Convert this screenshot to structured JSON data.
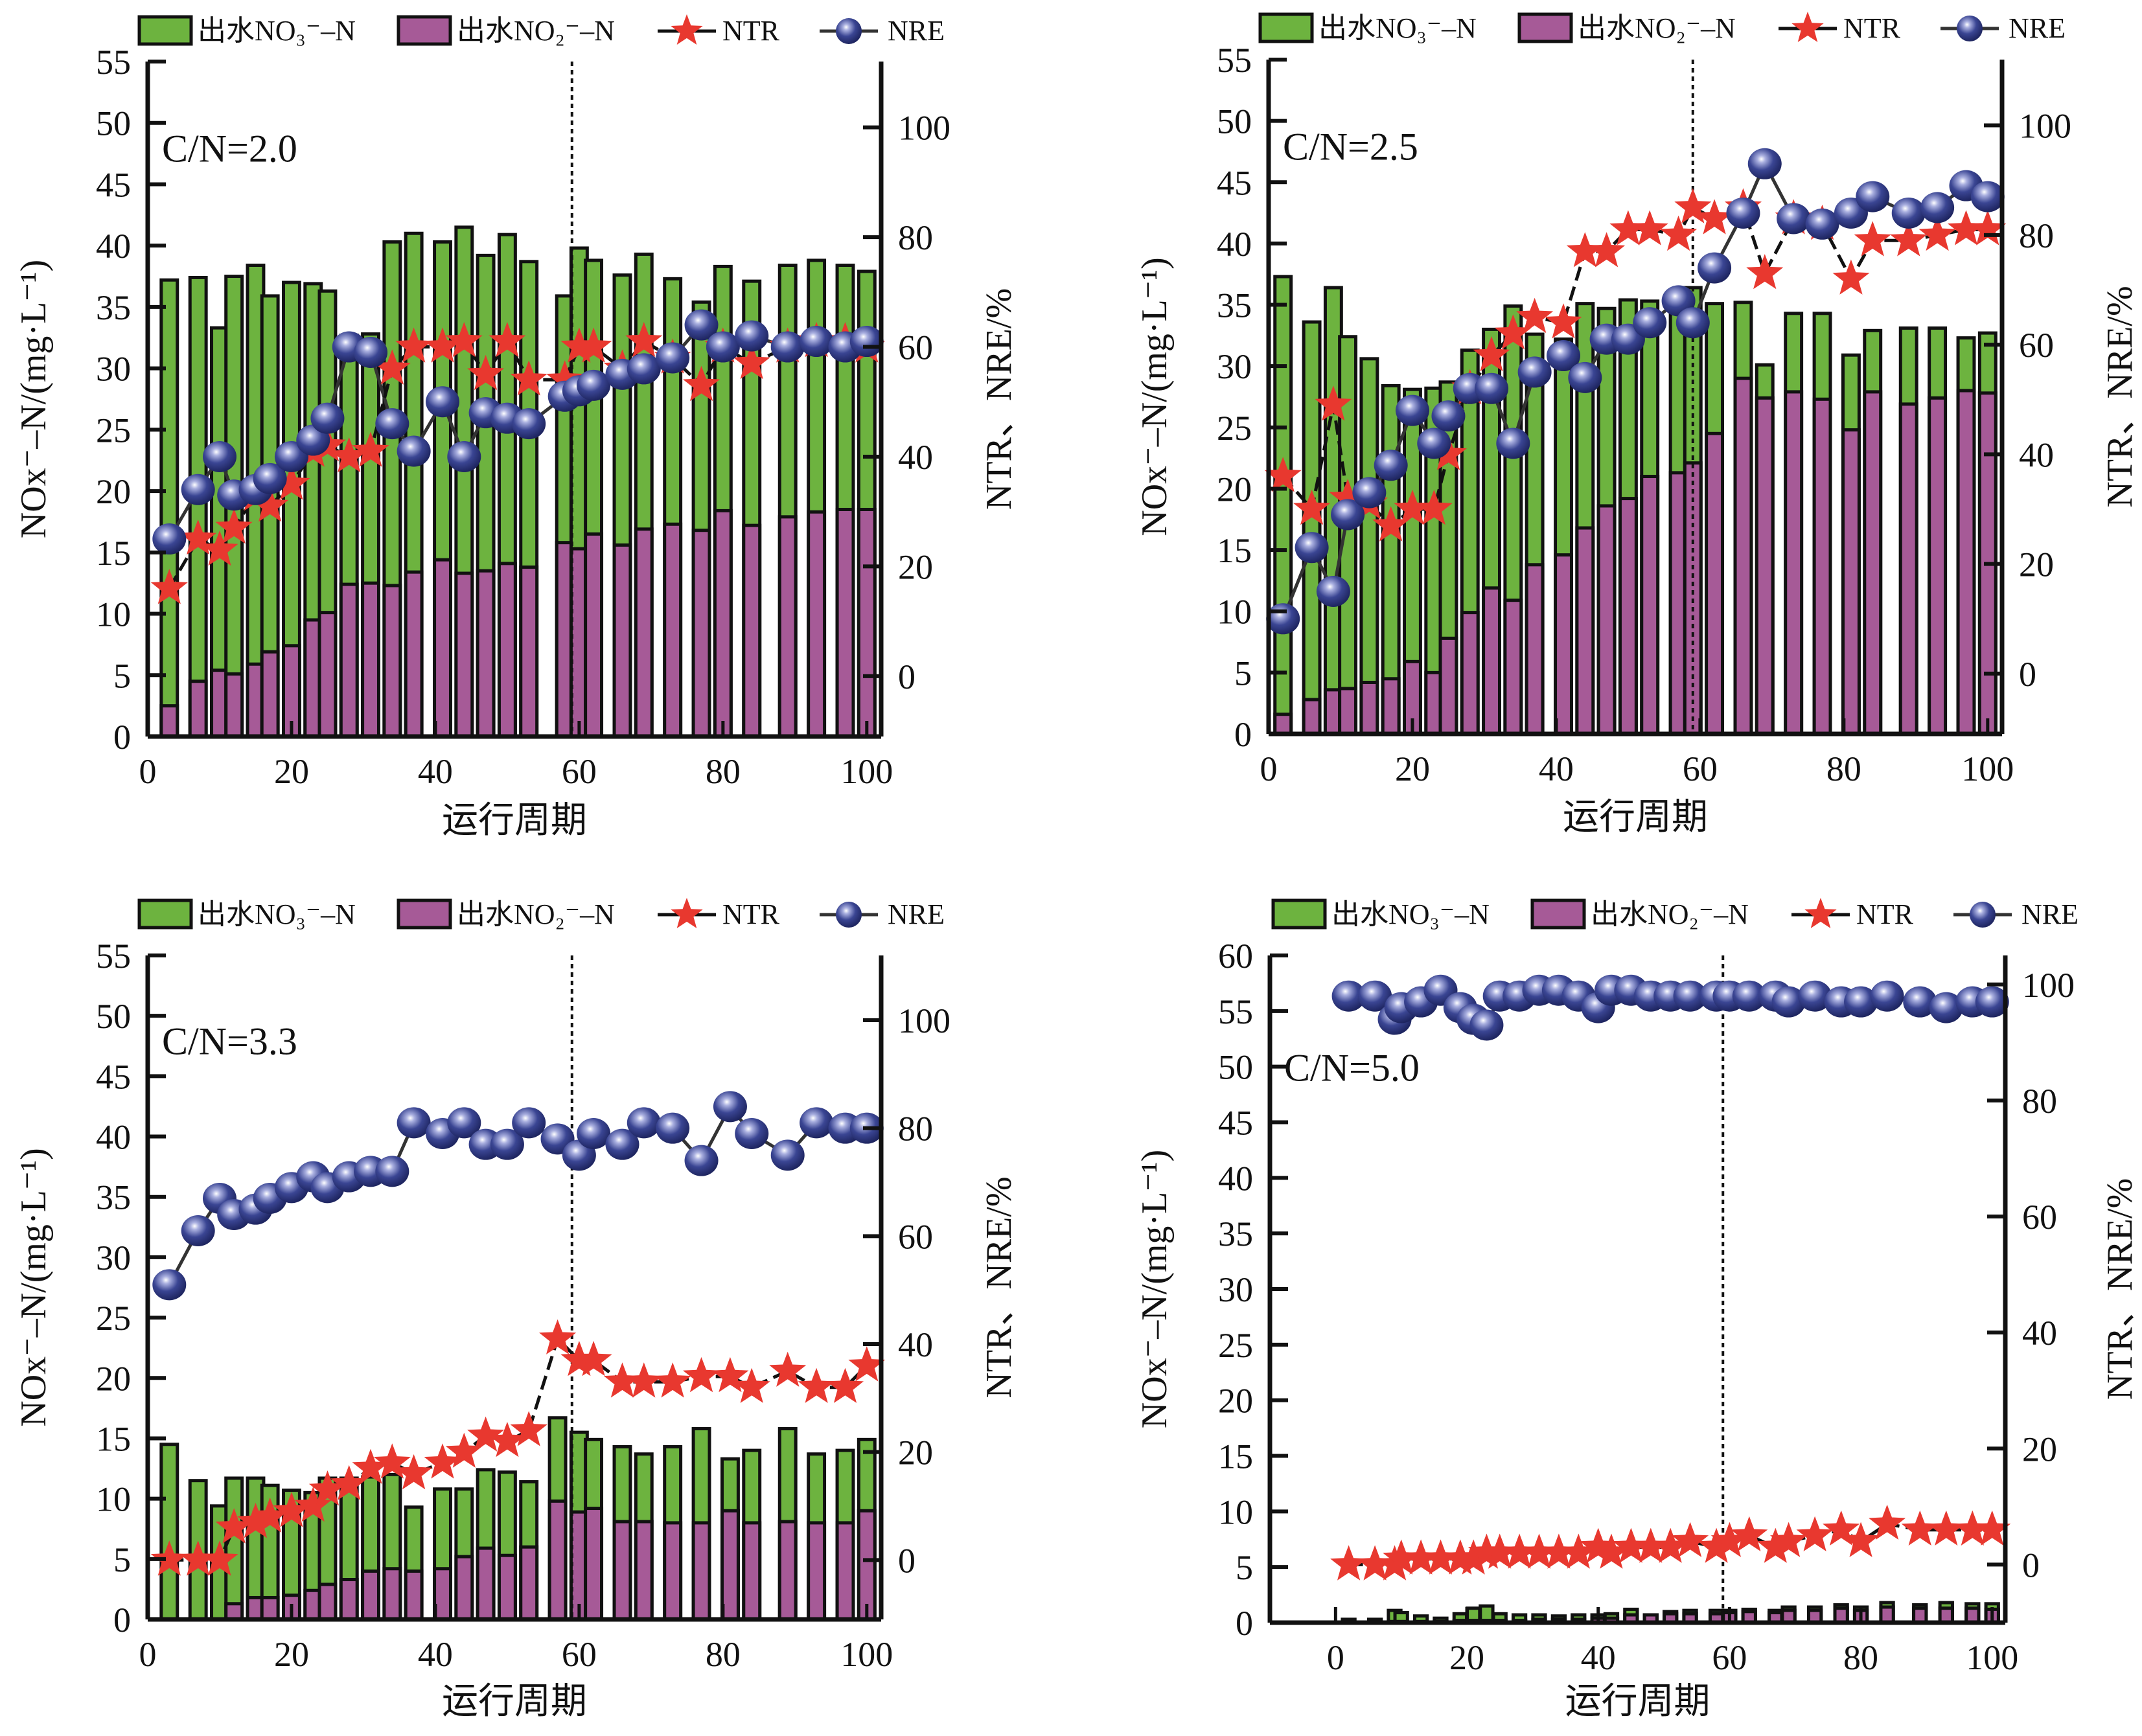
{
  "colors": {
    "no3_bar": "#6db33f",
    "no2_bar": "#a65a97",
    "ntr_star": "#e8382f",
    "nre_ball": "#3a4593",
    "axis": "#111111"
  },
  "legend": {
    "no3_label": "出水NO₃⁻–N",
    "no2_label": "出水NO₂⁻–N",
    "ntr_label": "NTR",
    "nre_label": "NRE"
  },
  "chart_data": [
    {
      "type": "bar",
      "panel": "top-left",
      "annotation": "C/N=2.0",
      "xlabel": "运行周期",
      "ylabel": "NOx⁻–N/(mg·L⁻¹)",
      "y2label": "NTR、NRE/%",
      "xlim": [
        0,
        102
      ],
      "ylim": [
        0,
        55
      ],
      "y2lim": [
        -11,
        112
      ],
      "xticks": [
        0,
        20,
        40,
        60,
        80,
        100
      ],
      "yticks": [
        0,
        5,
        10,
        15,
        20,
        25,
        30,
        35,
        40,
        45,
        50,
        55
      ],
      "y2ticks": [
        0,
        20,
        40,
        60,
        80,
        100
      ],
      "vline_x": 59,
      "legend_position": "top",
      "x": [
        3,
        7,
        10,
        12,
        15,
        17,
        20,
        23,
        25,
        28,
        31,
        34,
        37,
        41,
        44,
        47,
        50,
        53,
        58,
        60,
        62,
        66,
        69,
        73,
        77,
        80,
        84,
        89,
        93,
        97,
        100
      ],
      "series": [
        {
          "name": "出水NO₃⁻–N (stack total)",
          "values": [
            37.2,
            37.4,
            33.3,
            37.5,
            38.4,
            35.9,
            37.0,
            36.9,
            36.3,
            32.7,
            32.8,
            40.3,
            41.0,
            40.3,
            41.5,
            39.2,
            40.9,
            38.7,
            35.9,
            39.8,
            38.8,
            37.6,
            39.3,
            37.3,
            35.4,
            38.3,
            37.1,
            38.4,
            38.8,
            38.4,
            37.9
          ]
        },
        {
          "name": "出水NO₂⁻–N",
          "values": [
            2.5,
            4.5,
            5.4,
            5.1,
            5.9,
            6.9,
            7.4,
            9.5,
            10.1,
            12.4,
            12.5,
            12.3,
            13.4,
            14.4,
            13.3,
            13.5,
            14.1,
            13.8,
            15.8,
            15.3,
            16.5,
            15.6,
            16.9,
            17.3,
            16.8,
            18.4,
            17.2,
            17.9,
            18.3,
            18.5,
            18.5
          ]
        },
        {
          "name": "NTR",
          "values": [
            16,
            25,
            23,
            27,
            33,
            31,
            35,
            41,
            42,
            40,
            41,
            56,
            60,
            60,
            61,
            55,
            61,
            54,
            54,
            60,
            60,
            56,
            61,
            58,
            53,
            60,
            57,
            60,
            61,
            61,
            60
          ]
        },
        {
          "name": "NRE",
          "values": [
            25,
            34,
            40,
            33,
            34,
            36,
            40,
            43,
            47,
            60,
            59,
            46,
            41,
            50,
            40,
            48,
            47,
            46,
            51,
            52,
            53,
            55,
            56,
            58,
            64,
            60,
            62,
            60,
            61,
            60,
            61
          ]
        }
      ]
    },
    {
      "type": "bar",
      "panel": "top-right",
      "annotation": "C/N=2.5",
      "xlabel": "运行周期",
      "ylabel": "NOx⁻–N/(mg·L⁻¹)",
      "y2label": "NTR、NRE/%",
      "xlim": [
        0,
        102
      ],
      "ylim": [
        0,
        55
      ],
      "y2lim": [
        -11,
        112
      ],
      "xticks": [
        0,
        20,
        40,
        60,
        80,
        100
      ],
      "yticks": [
        0,
        5,
        10,
        15,
        20,
        25,
        30,
        35,
        40,
        45,
        50,
        55
      ],
      "y2ticks": [
        0,
        20,
        40,
        60,
        80,
        100
      ],
      "vline_x": 59,
      "legend_position": "top",
      "x": [
        2,
        6,
        9,
        11,
        14,
        17,
        20,
        23,
        25,
        28,
        31,
        34,
        37,
        41,
        44,
        47,
        50,
        53,
        57,
        59,
        62,
        66,
        69,
        73,
        77,
        81,
        84,
        89,
        93,
        97,
        100
      ],
      "series": [
        {
          "name": "出水NO₃⁻–N (stack total)",
          "values": [
            37.3,
            33.6,
            36.4,
            32.4,
            30.6,
            28.4,
            28.1,
            28.2,
            28.7,
            31.3,
            33.0,
            34.9,
            32.6,
            32.2,
            35.1,
            34.7,
            35.4,
            35.3,
            35.1,
            36.4,
            35.1,
            35.2,
            30.1,
            34.3,
            34.3,
            30.9,
            32.9,
            33.1,
            33.1,
            32.3,
            32.7
          ]
        },
        {
          "name": "出水NO₂⁻–N",
          "values": [
            1.6,
            2.8,
            3.6,
            3.7,
            4.2,
            4.5,
            5.9,
            5.0,
            7.8,
            9.9,
            11.9,
            10.9,
            13.8,
            14.6,
            16.8,
            18.6,
            19.2,
            21.0,
            21.3,
            22.1,
            24.5,
            29.0,
            27.4,
            27.9,
            27.3,
            24.8,
            27.9,
            26.9,
            27.4,
            28.0,
            27.8
          ]
        },
        {
          "name": "NTR",
          "values": [
            36,
            30,
            49,
            32,
            31,
            27,
            30,
            30,
            40,
            52,
            58,
            62,
            65,
            64,
            77,
            77,
            81,
            81,
            80,
            85,
            83,
            85,
            73,
            83,
            82,
            72,
            79,
            79,
            80,
            81,
            81
          ]
        },
        {
          "name": "NRE",
          "values": [
            10,
            23,
            15,
            29,
            33,
            38,
            48,
            42,
            47,
            52,
            52,
            42,
            55,
            58,
            54,
            61,
            61,
            64,
            68,
            64,
            74,
            84,
            93,
            83,
            82,
            84,
            87,
            84,
            85,
            89,
            87
          ]
        }
      ]
    },
    {
      "type": "bar",
      "panel": "bottom-left",
      "annotation": "C/N=3.3",
      "xlabel": "运行周期",
      "ylabel": "NOx⁻–N/(mg·L⁻¹)",
      "y2label": "NTR、NRE/%",
      "xlim": [
        0,
        102
      ],
      "ylim": [
        0,
        55
      ],
      "y2lim": [
        -11,
        112
      ],
      "xticks": [
        0,
        20,
        40,
        60,
        80,
        100
      ],
      "yticks": [
        0,
        5,
        10,
        15,
        20,
        25,
        30,
        35,
        40,
        45,
        50,
        55
      ],
      "y2ticks": [
        0,
        20,
        40,
        60,
        80,
        100
      ],
      "vline_x": 59,
      "legend_position": "top",
      "x": [
        3,
        7,
        10,
        12,
        15,
        17,
        20,
        23,
        25,
        28,
        31,
        34,
        37,
        41,
        44,
        47,
        50,
        53,
        57,
        60,
        62,
        66,
        69,
        73,
        77,
        81,
        84,
        89,
        93,
        97,
        100
      ],
      "series": [
        {
          "name": "出水NO₃⁻–N (stack total)",
          "values": [
            14.5,
            11.5,
            9.4,
            11.7,
            11.7,
            11.1,
            10.7,
            10.5,
            11.7,
            11.7,
            11.8,
            12.0,
            9.3,
            10.8,
            10.8,
            12.4,
            12.2,
            11.4,
            16.7,
            15.5,
            14.9,
            14.3,
            13.7,
            14.3,
            15.8,
            13.3,
            14.0,
            15.8,
            13.7,
            14.0,
            14.9
          ]
        },
        {
          "name": "出水NO₂⁻–N",
          "values": [
            0,
            0,
            0,
            1.3,
            1.8,
            1.8,
            2.0,
            2.4,
            2.9,
            3.3,
            4.0,
            4.2,
            4.0,
            4.2,
            5.2,
            5.9,
            5.3,
            6.0,
            9.8,
            8.9,
            9.2,
            8.1,
            8.1,
            8.0,
            8.0,
            9.0,
            8.0,
            8.1,
            8.0,
            8.0,
            9.0
          ]
        },
        {
          "name": "NTR",
          "values": [
            0,
            0,
            0,
            6,
            7,
            8,
            9,
            10,
            13,
            14,
            17,
            18,
            16,
            18,
            20,
            23,
            22,
            24,
            41,
            37,
            37,
            33,
            33,
            33,
            34,
            34,
            32,
            35,
            32,
            32,
            36
          ]
        },
        {
          "name": "NRE",
          "values": [
            51,
            61,
            67,
            64,
            65,
            67,
            69,
            71,
            69,
            71,
            72,
            72,
            81,
            79,
            81,
            77,
            77,
            81,
            78,
            75,
            79,
            77,
            81,
            80,
            74,
            84,
            79,
            75,
            81,
            80,
            80
          ]
        }
      ]
    },
    {
      "type": "bar",
      "panel": "bottom-right",
      "annotation": "C/N=5.0",
      "xlabel": "运行周期",
      "ylabel": "NOx⁻–N/(mg·L⁻¹)",
      "y2label": "NTR、NRE/%",
      "xlim": [
        -10,
        102
      ],
      "ylim": [
        0,
        60
      ],
      "y2lim": [
        -10,
        105
      ],
      "xticks": [
        0,
        20,
        40,
        60,
        80,
        100
      ],
      "yticks": [
        0,
        5,
        10,
        15,
        20,
        25,
        30,
        35,
        40,
        45,
        50,
        55,
        60
      ],
      "y2ticks": [
        0,
        20,
        40,
        60,
        80,
        100
      ],
      "vline_x": 59,
      "legend_position": "top",
      "x": [
        2,
        6,
        9,
        10,
        13,
        16,
        19,
        21,
        23,
        25,
        28,
        31,
        34,
        37,
        40,
        42,
        45,
        48,
        51,
        54,
        58,
        60,
        63,
        67,
        69,
        73,
        77,
        80,
        84,
        89,
        93,
        97,
        100
      ],
      "series": [
        {
          "name": "出水NO₃⁻–N (stack total)",
          "values": [
            0.3,
            0.3,
            1.1,
            0.9,
            0.6,
            0.4,
            0.8,
            1.3,
            1.5,
            0.8,
            0.7,
            0.7,
            0.6,
            0.7,
            0.7,
            0.8,
            1.2,
            0.7,
            1.0,
            1.1,
            1.1,
            1.1,
            1.2,
            1.1,
            1.4,
            1.4,
            1.6,
            1.4,
            1.8,
            1.6,
            1.8,
            1.7,
            1.7
          ]
        },
        {
          "name": "出水NO₂⁻–N",
          "values": [
            0,
            0,
            0.1,
            0.1,
            0.1,
            0.1,
            0.2,
            0.2,
            0.2,
            0.2,
            0.2,
            0.3,
            0.3,
            0.3,
            0.4,
            0.4,
            0.7,
            0.7,
            0.8,
            0.8,
            0.8,
            0.9,
            1.0,
            0.9,
            1.1,
            1.1,
            1.3,
            1.1,
            1.4,
            1.3,
            1.3,
            1.3,
            1.2
          ]
        },
        {
          "name": "NTR",
          "values": [
            0,
            0,
            0,
            1,
            1,
            1,
            1,
            1,
            2,
            2,
            2,
            2,
            2,
            2,
            3,
            2,
            3,
            3,
            3,
            4,
            3,
            4,
            5,
            3,
            4,
            5,
            6,
            4,
            7,
            6,
            6,
            6,
            6
          ]
        },
        {
          "name": "NRE",
          "values": [
            98,
            98,
            94,
            96,
            97,
            99,
            96,
            94,
            93,
            98,
            98,
            99,
            99,
            98,
            96,
            99,
            99,
            98,
            98,
            98,
            98,
            98,
            98,
            98,
            97,
            98,
            97,
            97,
            98,
            97,
            96,
            97,
            97
          ]
        }
      ]
    }
  ]
}
